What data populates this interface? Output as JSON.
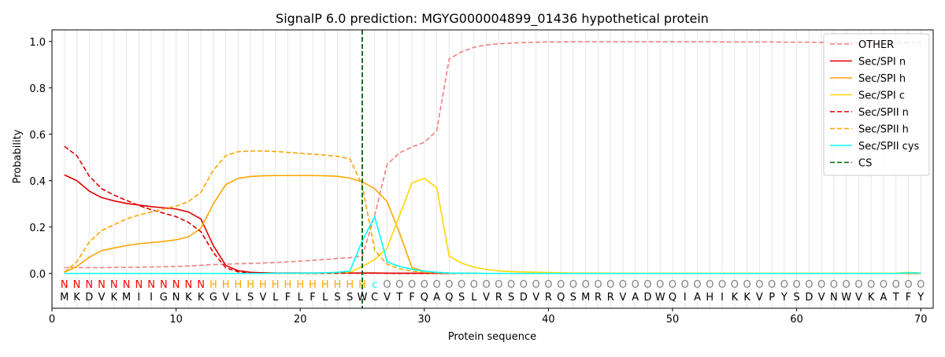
{
  "chart_data": {
    "type": "line",
    "title": "SignalP 6.0 prediction: MGYG000004899_01436 hypothetical protein",
    "xlabel": "Protein sequence",
    "ylabel": "Probability",
    "xlim": [
      0,
      71
    ],
    "ylim": [
      -0.15,
      1.05
    ],
    "xticks": [
      0,
      10,
      20,
      30,
      40,
      50,
      60,
      70
    ],
    "yticks": [
      0.0,
      0.2,
      0.4,
      0.6,
      0.8,
      1.0
    ],
    "xtick_labels": [
      "0",
      "10",
      "20",
      "30",
      "40",
      "50",
      "60",
      "70"
    ],
    "ytick_labels": [
      "0.0",
      "0.2",
      "0.4",
      "0.6",
      "0.8",
      "1.0"
    ],
    "legend_position": "top-right",
    "vertical_gridlines": "one light line at every residue position 1–70",
    "sequence": [
      "M",
      "K",
      "D",
      "V",
      "K",
      "M",
      "I",
      "I",
      "G",
      "N",
      "K",
      "K",
      "G",
      "V",
      "L",
      "S",
      "V",
      "L",
      "F",
      "L",
      "F",
      "L",
      "S",
      "S",
      "W",
      "C",
      "V",
      "T",
      "F",
      "Q",
      "A",
      "Q",
      "S",
      "L",
      "V",
      "R",
      "S",
      "D",
      "V",
      "R",
      "Q",
      "S",
      "M",
      "R",
      "R",
      "V",
      "A",
      "D",
      "W",
      "Q",
      "I",
      "A",
      "H",
      "I",
      "K",
      "K",
      "V",
      "P",
      "Y",
      "S",
      "D",
      "V",
      "N",
      "W",
      "V",
      "K",
      "A",
      "T",
      "F",
      "Y"
    ],
    "region_labels": [
      "N",
      "N",
      "N",
      "N",
      "N",
      "N",
      "N",
      "N",
      "N",
      "N",
      "N",
      "N",
      "H",
      "H",
      "H",
      "H",
      "H",
      "H",
      "H",
      "H",
      "H",
      "H",
      "H",
      "H",
      "H",
      "c",
      "O",
      "O",
      "O",
      "O",
      "O",
      "O",
      "O",
      "O",
      "O",
      "O",
      "O",
      "O",
      "O",
      "O",
      "O",
      "O",
      "O",
      "O",
      "O",
      "O",
      "O",
      "O",
      "O",
      "O",
      "O",
      "O",
      "O",
      "O",
      "O",
      "O",
      "O",
      "O",
      "O",
      "O",
      "O",
      "O",
      "O",
      "O",
      "O",
      "O",
      "O",
      "O",
      "O",
      "O"
    ],
    "region_colors": {
      "N": "#ff0000",
      "H": "#ffa500",
      "c": "#00ffff",
      "O": "#808080"
    },
    "cleavage_site": 25,
    "series": [
      {
        "name": "OTHER",
        "color": "#f08080",
        "style": "dashed",
        "values": [
          0.025,
          0.025,
          0.025,
          0.025,
          0.026,
          0.026,
          0.027,
          0.028,
          0.029,
          0.03,
          0.032,
          0.035,
          0.038,
          0.04,
          0.042,
          0.043,
          0.045,
          0.047,
          0.05,
          0.053,
          0.057,
          0.06,
          0.065,
          0.068,
          0.075,
          0.25,
          0.47,
          0.52,
          0.545,
          0.565,
          0.615,
          0.925,
          0.955,
          0.975,
          0.985,
          0.99,
          0.993,
          0.995,
          0.997,
          0.998,
          0.998,
          0.999,
          0.999,
          0.999,
          0.999,
          0.999,
          0.999,
          0.999,
          0.999,
          0.999,
          0.999,
          0.999,
          0.999,
          0.998,
          0.998,
          0.998,
          0.998,
          0.998,
          0.997,
          0.997,
          0.997,
          0.996,
          0.996,
          0.995,
          0.995,
          0.995,
          0.995,
          0.995,
          0.995,
          0.995
        ]
      },
      {
        "name": "Sec/SPI n",
        "color": "#e00000",
        "style": "solid",
        "values": [
          0.425,
          0.4,
          0.355,
          0.327,
          0.313,
          0.302,
          0.295,
          0.288,
          0.283,
          0.278,
          0.265,
          0.235,
          0.12,
          0.035,
          0.012,
          0.005,
          0.003,
          0.002,
          0.002,
          0.002,
          0.002,
          0.002,
          0.002,
          0.002,
          0.002,
          0.002,
          0.001,
          0.001,
          0.001,
          0.001,
          0.001,
          0,
          0,
          0,
          0,
          0,
          0,
          0,
          0,
          0,
          0,
          0,
          0,
          0,
          0,
          0,
          0,
          0,
          0,
          0,
          0,
          0,
          0,
          0,
          0,
          0,
          0,
          0,
          0,
          0,
          0,
          0,
          0,
          0,
          0,
          0,
          0,
          0,
          0,
          0
        ]
      },
      {
        "name": "Sec/SPI h",
        "color": "#ffa500",
        "style": "solid",
        "values": [
          0.005,
          0.03,
          0.07,
          0.098,
          0.11,
          0.12,
          0.128,
          0.133,
          0.138,
          0.145,
          0.158,
          0.195,
          0.3,
          0.383,
          0.41,
          0.418,
          0.421,
          0.422,
          0.422,
          0.422,
          0.422,
          0.421,
          0.419,
          0.411,
          0.395,
          0.365,
          0.31,
          0.175,
          0.025,
          0.01,
          0.005,
          0.002,
          0.001,
          0.001,
          0,
          0,
          0,
          0,
          0,
          0,
          0,
          0,
          0,
          0,
          0,
          0,
          0,
          0,
          0,
          0,
          0,
          0,
          0,
          0,
          0,
          0,
          0,
          0,
          0,
          0,
          0,
          0,
          0,
          0,
          0,
          0,
          0,
          0,
          0,
          0
        ]
      },
      {
        "name": "Sec/SPI c",
        "color": "#ffd700",
        "style": "solid",
        "values": [
          0,
          0,
          0,
          0,
          0,
          0,
          0,
          0,
          0,
          0,
          0,
          0,
          0,
          0,
          0,
          0,
          0,
          0,
          0,
          0,
          0,
          0.001,
          0.002,
          0.005,
          0.03,
          0.06,
          0.11,
          0.25,
          0.39,
          0.41,
          0.37,
          0.075,
          0.045,
          0.027,
          0.017,
          0.011,
          0.008,
          0.006,
          0.005,
          0.004,
          0.003,
          0.002,
          0.002,
          0.002,
          0.001,
          0.001,
          0.001,
          0.001,
          0.001,
          0.001,
          0.001,
          0.001,
          0.001,
          0.001,
          0.001,
          0.001,
          0.001,
          0.001,
          0.001,
          0.001,
          0.001,
          0.001,
          0.001,
          0.001,
          0.001,
          0.001,
          0.001,
          0.001,
          0.005,
          0.002
        ]
      },
      {
        "name": "Sec/SPII n",
        "color": "#e00000",
        "style": "dashed",
        "values": [
          0.548,
          0.508,
          0.42,
          0.365,
          0.338,
          0.315,
          0.293,
          0.275,
          0.26,
          0.245,
          0.22,
          0.18,
          0.09,
          0.025,
          0.007,
          0.003,
          0.002,
          0.001,
          0.001,
          0.001,
          0.001,
          0.001,
          0.001,
          0.001,
          0.001,
          0.001,
          0.001,
          0,
          0,
          0,
          0,
          0,
          0,
          0,
          0,
          0,
          0,
          0,
          0,
          0,
          0,
          0,
          0,
          0,
          0,
          0,
          0,
          0,
          0,
          0,
          0,
          0,
          0,
          0,
          0,
          0,
          0,
          0,
          0,
          0,
          0,
          0,
          0,
          0,
          0,
          0,
          0,
          0,
          0,
          0
        ]
      },
      {
        "name": "Sec/SPII h",
        "color": "#ffa500",
        "style": "dashed",
        "values": [
          0.005,
          0.05,
          0.135,
          0.185,
          0.21,
          0.235,
          0.252,
          0.265,
          0.278,
          0.29,
          0.31,
          0.35,
          0.445,
          0.508,
          0.525,
          0.528,
          0.528,
          0.526,
          0.522,
          0.518,
          0.514,
          0.51,
          0.505,
          0.495,
          0.38,
          0.1,
          0.04,
          0.02,
          0.01,
          0.005,
          0.003,
          0.001,
          0,
          0,
          0,
          0,
          0,
          0,
          0,
          0,
          0,
          0,
          0,
          0,
          0,
          0,
          0,
          0,
          0,
          0,
          0,
          0,
          0,
          0,
          0,
          0,
          0,
          0,
          0,
          0,
          0,
          0,
          0,
          0,
          0,
          0,
          0,
          0,
          0,
          0
        ]
      },
      {
        "name": "Sec/SPII cys",
        "color": "#00ffff",
        "style": "solid",
        "values": [
          0,
          0,
          0,
          0,
          0,
          0,
          0,
          0,
          0,
          0,
          0,
          0,
          0,
          0,
          0,
          0,
          0,
          0.001,
          0.001,
          0.001,
          0.002,
          0.003,
          0.005,
          0.01,
          0.14,
          0.245,
          0.05,
          0.03,
          0.018,
          0.01,
          0.005,
          0.002,
          0.001,
          0.001,
          0,
          0,
          0,
          0,
          0,
          0,
          0,
          0,
          0,
          0,
          0,
          0,
          0,
          0,
          0,
          0,
          0,
          0,
          0,
          0,
          0,
          0,
          0,
          0,
          0,
          0,
          0,
          0,
          0,
          0,
          0,
          0,
          0,
          0,
          0.003,
          0.002
        ]
      },
      {
        "name": "CS",
        "color": "#006400",
        "style": "dashed"
      }
    ]
  }
}
